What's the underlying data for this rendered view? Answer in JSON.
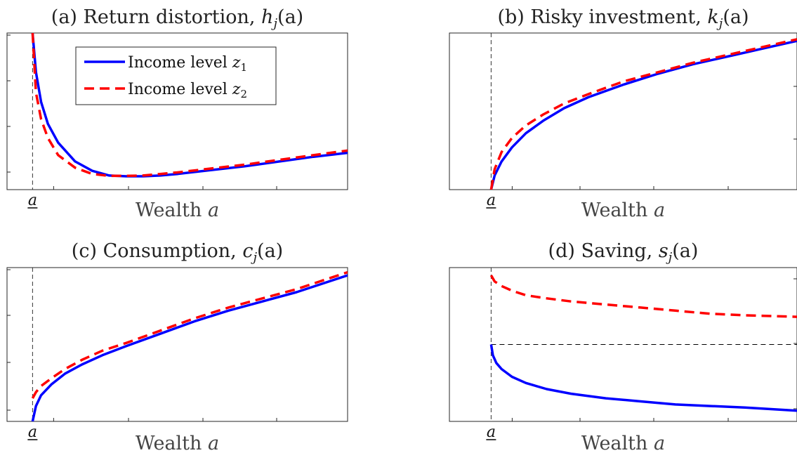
{
  "chart_data": [
    {
      "type": "line",
      "title": "(a) Return distortion, h_j(a)",
      "title_parts": {
        "main": "(a) Return distortion, ",
        "fn": "h",
        "sub": "j",
        "arg": "(a)"
      },
      "xlabel": "Wealth a",
      "xlabel_parts": {
        "word": "Wealth ",
        "var": "a"
      },
      "x_tick_label": "a",
      "xlim": [
        0,
        1
      ],
      "ylim": [
        0,
        1
      ],
      "borrowing_limit_x": 0.075,
      "legend": {
        "position": "top-left",
        "entries": [
          "Income level z_1",
          "Income level z_2"
        ]
      },
      "legend_parts": [
        {
          "word": "Income level ",
          "var": "z",
          "sub": "1"
        },
        {
          "word": "Income level ",
          "var": "z",
          "sub": "2"
        }
      ],
      "series": [
        {
          "name": "Income level z_1",
          "color": "#0000ff",
          "style": "solid",
          "x": [
            0.075,
            0.085,
            0.1,
            0.12,
            0.15,
            0.2,
            0.25,
            0.3,
            0.35,
            0.4,
            0.45,
            0.5,
            0.6,
            0.7,
            0.8,
            0.9,
            1.0
          ],
          "y": [
            1.0,
            0.75,
            0.56,
            0.42,
            0.3,
            0.18,
            0.12,
            0.09,
            0.085,
            0.085,
            0.09,
            0.1,
            0.125,
            0.15,
            0.18,
            0.21,
            0.235
          ]
        },
        {
          "name": "Income level z_2",
          "color": "#ff0000",
          "style": "dashed",
          "x": [
            0.075,
            0.085,
            0.1,
            0.12,
            0.15,
            0.2,
            0.25,
            0.3,
            0.35,
            0.4,
            0.45,
            0.5,
            0.6,
            0.7,
            0.8,
            0.9,
            1.0
          ],
          "y": [
            1.0,
            0.62,
            0.45,
            0.33,
            0.22,
            0.14,
            0.1,
            0.088,
            0.088,
            0.09,
            0.1,
            0.11,
            0.135,
            0.16,
            0.19,
            0.22,
            0.25
          ]
        }
      ]
    },
    {
      "type": "line",
      "title": "(b) Risky investment, k_j(a)",
      "title_parts": {
        "main": "(b) Risky investment, ",
        "fn": "k",
        "sub": "j",
        "arg": "(a)"
      },
      "xlabel": "Wealth a",
      "xlabel_parts": {
        "word": "Wealth ",
        "var": "a"
      },
      "x_tick_label": "a",
      "xlim": [
        0,
        1
      ],
      "ylim": [
        0,
        1
      ],
      "borrowing_limit_x": 0.12,
      "series": [
        {
          "name": "Income level z_1",
          "color": "#0000ff",
          "style": "solid",
          "x": [
            0.12,
            0.13,
            0.15,
            0.18,
            0.22,
            0.27,
            0.33,
            0.4,
            0.5,
            0.6,
            0.7,
            0.8,
            0.9,
            1.0
          ],
          "y": [
            0.0,
            0.09,
            0.18,
            0.27,
            0.36,
            0.44,
            0.52,
            0.59,
            0.67,
            0.74,
            0.8,
            0.85,
            0.9,
            0.95
          ]
        },
        {
          "name": "Income level z_2",
          "color": "#ff0000",
          "style": "dashed",
          "x": [
            0.12,
            0.13,
            0.15,
            0.18,
            0.22,
            0.27,
            0.33,
            0.4,
            0.5,
            0.6,
            0.7,
            0.8,
            0.9,
            1.0
          ],
          "y": [
            0.0,
            0.13,
            0.24,
            0.33,
            0.41,
            0.48,
            0.55,
            0.61,
            0.69,
            0.75,
            0.81,
            0.86,
            0.91,
            0.96
          ]
        }
      ]
    },
    {
      "type": "line",
      "title": "(c) Consumption, c_j(a)",
      "title_parts": {
        "main": "(c) Consumption, ",
        "fn": "c",
        "sub": "j",
        "arg": "(a)"
      },
      "xlabel": "Wealth a",
      "xlabel_parts": {
        "word": "Wealth ",
        "var": "a"
      },
      "x_tick_label": "a",
      "xlim": [
        0,
        1
      ],
      "ylim": [
        0,
        1
      ],
      "borrowing_limit_x": 0.075,
      "series": [
        {
          "name": "Income level z_1",
          "color": "#0000ff",
          "style": "solid",
          "x": [
            0.075,
            0.085,
            0.1,
            0.13,
            0.17,
            0.22,
            0.28,
            0.35,
            0.45,
            0.55,
            0.65,
            0.75,
            0.85,
            1.0
          ],
          "y": [
            0.0,
            0.1,
            0.17,
            0.24,
            0.31,
            0.37,
            0.43,
            0.49,
            0.57,
            0.65,
            0.72,
            0.78,
            0.84,
            0.95
          ]
        },
        {
          "name": "Income level z_2",
          "color": "#ff0000",
          "style": "dashed",
          "x": [
            0.075,
            0.085,
            0.1,
            0.13,
            0.17,
            0.22,
            0.28,
            0.35,
            0.45,
            0.55,
            0.65,
            0.75,
            0.85,
            1.0
          ],
          "y": [
            0.15,
            0.19,
            0.23,
            0.28,
            0.34,
            0.4,
            0.46,
            0.51,
            0.59,
            0.67,
            0.74,
            0.8,
            0.86,
            0.97
          ]
        }
      ]
    },
    {
      "type": "line",
      "title": "(d) Saving, s_j(a)",
      "title_parts": {
        "main": "(d) Saving, ",
        "fn": "s",
        "sub": "j",
        "arg": "(a)"
      },
      "xlabel": "Wealth a",
      "xlabel_parts": {
        "word": "Wealth ",
        "var": "a"
      },
      "x_tick_label": "a",
      "xlim": [
        0,
        1
      ],
      "ylim": [
        0,
        1
      ],
      "borrowing_limit_x": 0.12,
      "zero_line_y": 0.5,
      "series": [
        {
          "name": "Income level z_1",
          "color": "#0000ff",
          "style": "solid",
          "x": [
            0.12,
            0.125,
            0.135,
            0.15,
            0.18,
            0.22,
            0.28,
            0.35,
            0.45,
            0.55,
            0.65,
            0.75,
            0.85,
            1.0
          ],
          "y": [
            0.5,
            0.43,
            0.38,
            0.34,
            0.29,
            0.25,
            0.21,
            0.18,
            0.15,
            0.13,
            0.11,
            0.1,
            0.09,
            0.07
          ]
        },
        {
          "name": "Income level z_2",
          "color": "#ff0000",
          "style": "dashed",
          "x": [
            0.12,
            0.13,
            0.15,
            0.18,
            0.22,
            0.28,
            0.35,
            0.45,
            0.55,
            0.65,
            0.75,
            0.85,
            1.0
          ],
          "y": [
            0.95,
            0.91,
            0.88,
            0.85,
            0.82,
            0.8,
            0.78,
            0.76,
            0.74,
            0.72,
            0.7,
            0.69,
            0.68
          ]
        }
      ]
    }
  ]
}
